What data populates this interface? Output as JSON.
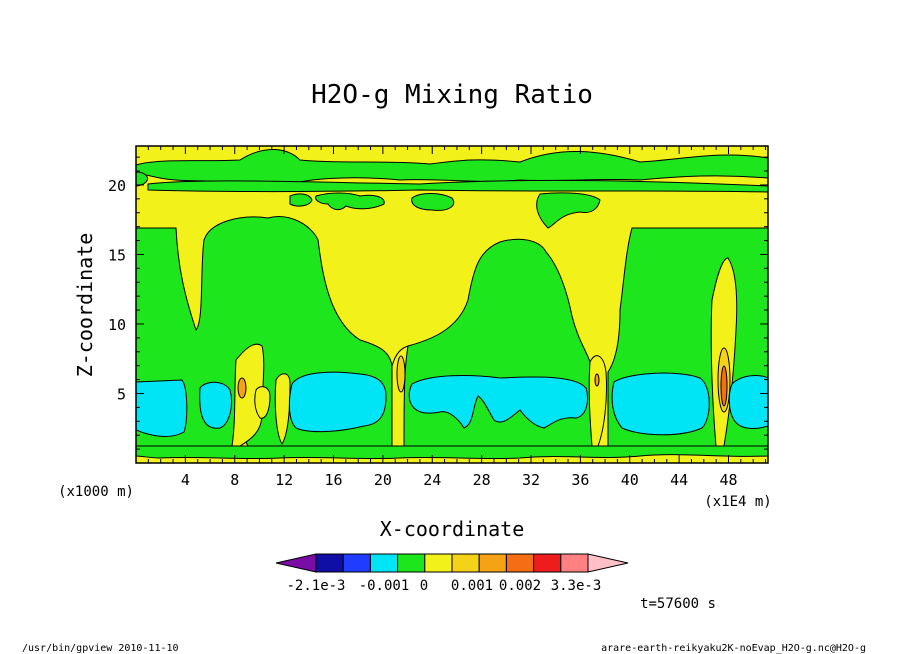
{
  "chart_data": {
    "type": "heatmap",
    "title": "H2O-g Mixing Ratio",
    "xlabel": "X-coordinate",
    "ylabel": "Z-coordinate",
    "x_unit_left": "(x1000 m)",
    "x_unit_right": "(x1E4 m)",
    "x_ticks": [
      4,
      8,
      12,
      16,
      20,
      24,
      28,
      32,
      36,
      40,
      44,
      48
    ],
    "y_ticks": [
      5,
      10,
      15,
      20
    ],
    "xlim": [
      0,
      51.2
    ],
    "ylim": [
      0,
      22.8
    ],
    "colorbar": {
      "colors": [
        "#7a0da6",
        "#0f0fa8",
        "#1f3cff",
        "#00e5f5",
        "#1de61d",
        "#f2f21a",
        "#f5d21a",
        "#f5a214",
        "#f56e14",
        "#ee1c1c",
        "#ff8080",
        "#ffc0c8"
      ],
      "labels": [
        "-2.1e-3",
        "-0.001",
        "0",
        "0.001",
        "0.002",
        "3.3e-3"
      ]
    },
    "fields": {
      "background": "yellow",
      "top_band": "mostly green with yellow gaps near z = 20-22",
      "mid_regions": "green columns from z = 1 to 17, yellow V-shaped gaps near x = 9, 21 and 37-39",
      "low_regions": "cyan blobs (negative values) between z = 2 and 6",
      "small_positive": "orange cores near x = 8.5, 21.5 and 47.5"
    },
    "time_label": "t=57600 s"
  },
  "footer": {
    "left": "/usr/bin/gpview  2010-11-10",
    "right": "arare-earth-reikyaku2K-noEvap_H2O-g.nc@H2O-g"
  }
}
